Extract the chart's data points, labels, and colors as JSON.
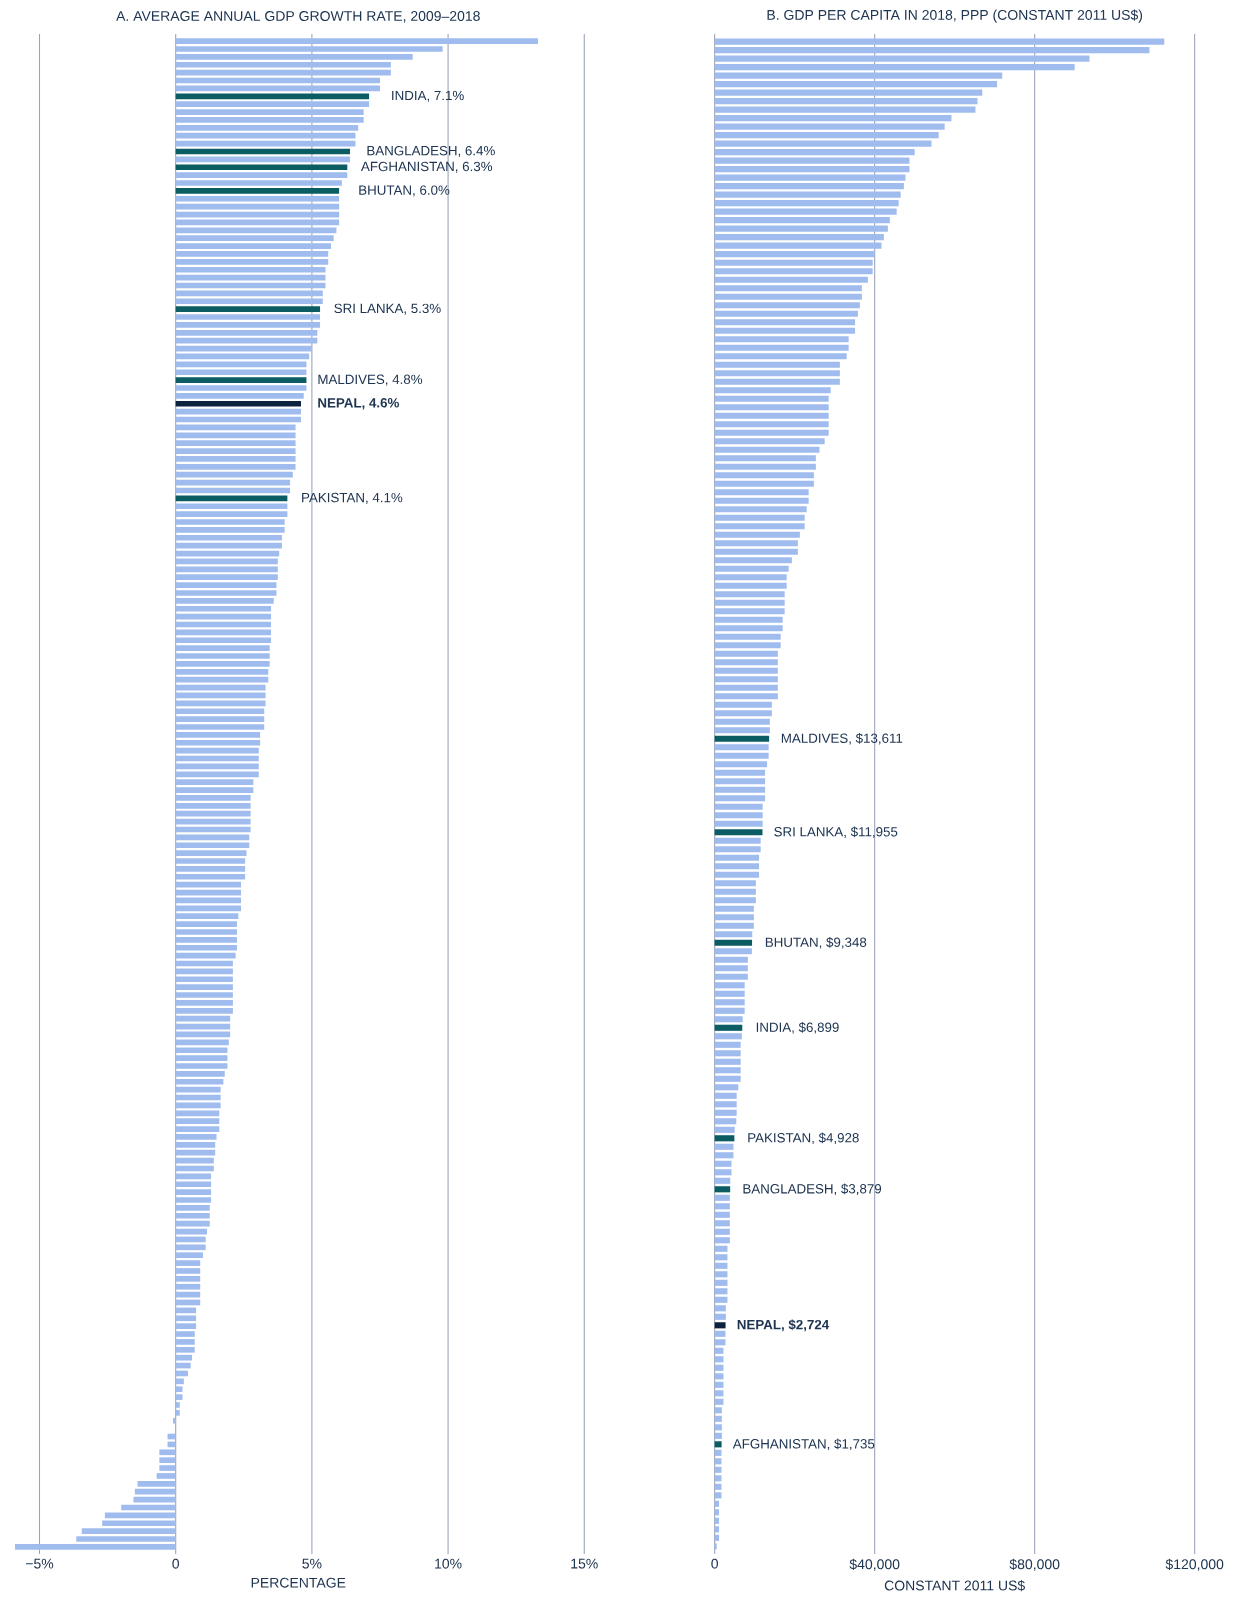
{
  "chart_data": [
    {
      "type": "bar",
      "orientation": "horizontal",
      "title": "A. AVERAGE ANNUAL GDP GROWTH RATE, 2009–2018",
      "xlabel": "PERCENTAGE",
      "grid": "x",
      "xlim": [
        -6,
        15
      ],
      "xticks": [
        {
          "value": -5,
          "label": "−5%"
        },
        0,
        {
          "value": 5,
          "label": "5%"
        },
        {
          "value": 10,
          "label": "10%"
        },
        {
          "value": 15,
          "label": "15%"
        }
      ],
      "categories": [
        null,
        null,
        null,
        null,
        null,
        null,
        null,
        null,
        null,
        null,
        null,
        null,
        null,
        null,
        null,
        null,
        null,
        null,
        null,
        null,
        null,
        null,
        null,
        null,
        null,
        null,
        null,
        null,
        null,
        null,
        null,
        null,
        null,
        null,
        null,
        null,
        null,
        null,
        null,
        null,
        null,
        null,
        null,
        null,
        null,
        null,
        null,
        null,
        null,
        null,
        null,
        null,
        null,
        null,
        null,
        null,
        null,
        null,
        null,
        null,
        null,
        null,
        null,
        null,
        null,
        null,
        null,
        null,
        null,
        null,
        null,
        null,
        null,
        null,
        null,
        null,
        null,
        null,
        null,
        null,
        null,
        null,
        null,
        null,
        null,
        null,
        null,
        null,
        null,
        null,
        null,
        null,
        null,
        null,
        null,
        null,
        null,
        null,
        null,
        null,
        null,
        null,
        null,
        null,
        null,
        null,
        null,
        null,
        null,
        null,
        null,
        null,
        null,
        null,
        null,
        null,
        null,
        null,
        null,
        null,
        null,
        null,
        null,
        null,
        null,
        null,
        null,
        null,
        null,
        null,
        null,
        null,
        null,
        null,
        null,
        null,
        null,
        null,
        null,
        null,
        null,
        null,
        null,
        null,
        null,
        null,
        null,
        null,
        null,
        null,
        null,
        null,
        null,
        null,
        null,
        null,
        null,
        null,
        null,
        null,
        null,
        null,
        null,
        null,
        null,
        null,
        null,
        null,
        null,
        null,
        null,
        null,
        null,
        null,
        null,
        null,
        null,
        null,
        null,
        null,
        null,
        null,
        null,
        null,
        null,
        null,
        null,
        null,
        null,
        null,
        null,
        null
      ],
      "values": [
        13.3,
        9.8,
        8.7,
        7.9,
        7.9,
        7.5,
        7.5,
        7.1,
        7.1,
        6.9,
        6.9,
        6.7,
        6.6,
        6.6,
        6.4,
        6.4,
        6.3,
        6.3,
        6.1,
        6.0,
        6.0,
        6.0,
        6.0,
        6.0,
        5.9,
        5.8,
        5.7,
        5.6,
        5.6,
        5.5,
        5.5,
        5.5,
        5.4,
        5.4,
        5.3,
        5.3,
        5.3,
        5.2,
        5.2,
        5.0,
        4.9,
        4.8,
        4.8,
        4.8,
        4.8,
        4.7,
        4.6,
        4.6,
        4.6,
        4.4,
        4.4,
        4.4,
        4.4,
        4.4,
        4.4,
        4.3,
        4.2,
        4.2,
        4.1,
        4.1,
        4.1,
        4.0,
        4.0,
        3.9,
        3.9,
        3.8,
        3.75,
        3.75,
        3.75,
        3.7,
        3.7,
        3.6,
        3.5,
        3.5,
        3.5,
        3.5,
        3.5,
        3.45,
        3.45,
        3.45,
        3.4,
        3.4,
        3.3,
        3.3,
        3.3,
        3.25,
        3.25,
        3.25,
        3.1,
        3.1,
        3.05,
        3.05,
        3.05,
        3.05,
        2.85,
        2.85,
        2.75,
        2.75,
        2.75,
        2.75,
        2.75,
        2.7,
        2.7,
        2.6,
        2.55,
        2.55,
        2.55,
        2.4,
        2.4,
        2.4,
        2.4,
        2.3,
        2.25,
        2.25,
        2.25,
        2.25,
        2.2,
        2.1,
        2.1,
        2.1,
        2.1,
        2.1,
        2.1,
        2.1,
        2.0,
        2.0,
        2.0,
        1.95,
        1.9,
        1.9,
        1.9,
        1.8,
        1.75,
        1.65,
        1.65,
        1.65,
        1.6,
        1.6,
        1.6,
        1.5,
        1.45,
        1.45,
        1.4,
        1.4,
        1.3,
        1.3,
        1.3,
        1.3,
        1.25,
        1.25,
        1.25,
        1.15,
        1.1,
        1.1,
        1.0,
        0.9,
        0.9,
        0.9,
        0.9,
        0.9,
        0.9,
        0.75,
        0.75,
        0.75,
        0.7,
        0.7,
        0.7,
        0.6,
        0.55,
        0.45,
        0.3,
        0.25,
        0.25,
        0.15,
        0.15,
        -0.1,
        0,
        -0.3,
        -0.3,
        -0.6,
        -0.6,
        -0.6,
        -0.7,
        -1.4,
        -1.5,
        -1.55,
        -2.0,
        -2.6,
        -2.7,
        -3.45,
        -3.65,
        -5.9
      ],
      "colors": [
        "#a0bcee",
        "#a0bcee",
        "#a0bcee",
        "#a0bcee",
        "#a0bcee",
        "#a0bcee",
        "#a0bcee",
        "#0b5c63",
        "#a0bcee",
        "#a0bcee",
        "#a0bcee",
        "#a0bcee",
        "#a0bcee",
        "#a0bcee",
        "#0b5c63",
        "#a0bcee",
        "#0b5c63",
        "#a0bcee",
        "#a0bcee",
        "#0b5c63",
        "#a0bcee",
        "#a0bcee",
        "#a0bcee",
        "#a0bcee",
        "#a0bcee",
        "#a0bcee",
        "#a0bcee",
        "#a0bcee",
        "#a0bcee",
        "#a0bcee",
        "#a0bcee",
        "#a0bcee",
        "#a0bcee",
        "#a0bcee",
        "#0b5c63",
        "#a0bcee",
        "#a0bcee",
        "#a0bcee",
        "#a0bcee",
        "#a0bcee",
        "#a0bcee",
        "#a0bcee",
        "#a0bcee",
        "#0b5c63",
        "#a0bcee",
        "#a0bcee",
        "#0c2340",
        "#a0bcee",
        "#a0bcee",
        "#a0bcee",
        "#a0bcee",
        "#a0bcee",
        "#a0bcee",
        "#a0bcee",
        "#a0bcee",
        "#a0bcee",
        "#a0bcee",
        "#a0bcee",
        "#0b5c63",
        "#a0bcee",
        "#a0bcee",
        "#a0bcee",
        "#a0bcee",
        "#a0bcee",
        "#a0bcee",
        "#a0bcee",
        "#a0bcee",
        "#a0bcee",
        "#a0bcee",
        "#a0bcee",
        "#a0bcee",
        "#a0bcee",
        "#a0bcee",
        "#a0bcee",
        "#a0bcee",
        "#a0bcee",
        "#a0bcee",
        "#a0bcee",
        "#a0bcee",
        "#a0bcee",
        "#a0bcee",
        "#a0bcee",
        "#a0bcee",
        "#a0bcee",
        "#a0bcee",
        "#a0bcee",
        "#a0bcee",
        "#a0bcee",
        "#a0bcee",
        "#a0bcee",
        "#a0bcee",
        "#a0bcee",
        "#a0bcee",
        "#a0bcee",
        "#a0bcee",
        "#a0bcee",
        "#a0bcee",
        "#a0bcee",
        "#a0bcee",
        "#a0bcee",
        "#a0bcee",
        "#a0bcee",
        "#a0bcee",
        "#a0bcee",
        "#a0bcee",
        "#a0bcee",
        "#a0bcee",
        "#a0bcee",
        "#a0bcee",
        "#a0bcee",
        "#a0bcee",
        "#a0bcee",
        "#a0bcee",
        "#a0bcee",
        "#a0bcee",
        "#a0bcee",
        "#a0bcee",
        "#a0bcee",
        "#a0bcee",
        "#a0bcee",
        "#a0bcee",
        "#a0bcee",
        "#a0bcee",
        "#a0bcee",
        "#a0bcee",
        "#a0bcee",
        "#a0bcee",
        "#a0bcee",
        "#a0bcee",
        "#a0bcee",
        "#a0bcee",
        "#a0bcee",
        "#a0bcee",
        "#a0bcee",
        "#a0bcee",
        "#a0bcee",
        "#a0bcee",
        "#a0bcee",
        "#a0bcee",
        "#a0bcee",
        "#a0bcee",
        "#a0bcee",
        "#a0bcee",
        "#a0bcee",
        "#a0bcee",
        "#a0bcee",
        "#a0bcee",
        "#a0bcee",
        "#a0bcee",
        "#a0bcee",
        "#a0bcee",
        "#a0bcee",
        "#a0bcee",
        "#a0bcee",
        "#a0bcee",
        "#a0bcee",
        "#a0bcee",
        "#a0bcee",
        "#a0bcee",
        "#a0bcee",
        "#a0bcee",
        "#a0bcee",
        "#a0bcee",
        "#a0bcee",
        "#a0bcee",
        "#a0bcee",
        "#a0bcee",
        "#a0bcee",
        "#a0bcee",
        "#a0bcee",
        "#a0bcee",
        "#a0bcee",
        "#a0bcee",
        "#a0bcee",
        "#a0bcee",
        "#a0bcee",
        "#a0bcee",
        "#a0bcee",
        "#a0bcee",
        "#a0bcee",
        "#a0bcee",
        "#a0bcee",
        "#a0bcee",
        "#a0bcee",
        "#a0bcee",
        "#a0bcee",
        "#a0bcee",
        "#a0bcee",
        "#a0bcee",
        "#a0bcee",
        "#a0bcee",
        "#a0bcee"
      ],
      "value_labels": [
        null,
        null,
        null,
        null,
        null,
        null,
        null,
        "INDIA, 7.1%",
        null,
        null,
        null,
        null,
        null,
        null,
        "BANGLADESH, 6.4%",
        null,
        "AFGHANISTAN, 6.3%",
        null,
        null,
        "BHUTAN, 6.0%",
        null,
        null,
        null,
        null,
        null,
        null,
        null,
        null,
        null,
        null,
        null,
        null,
        null,
        null,
        "SRI LANKA, 5.3%",
        null,
        null,
        null,
        null,
        null,
        null,
        null,
        null,
        "MALDIVES, 4.8%",
        null,
        null,
        "**NEPAL, 4.6%**",
        null,
        null,
        null,
        null,
        null,
        null,
        null,
        null,
        null,
        null,
        null,
        "PAKISTAN, 4.1%",
        null,
        null,
        null,
        null,
        null,
        null,
        null,
        null,
        null,
        null,
        null,
        null,
        null,
        null,
        null,
        null,
        null,
        null,
        null,
        null,
        null,
        null,
        null,
        null,
        null,
        null,
        null,
        null,
        null,
        null,
        null,
        null,
        null,
        null,
        null,
        null,
        null,
        null,
        null,
        null,
        null,
        null,
        null,
        null,
        null,
        null,
        null,
        null,
        null,
        null,
        null,
        null,
        null,
        null,
        null,
        null,
        null,
        null,
        null,
        null,
        null,
        null,
        null,
        null,
        null,
        null,
        null,
        null,
        null,
        null,
        null,
        null,
        null,
        null,
        null,
        null,
        null,
        null,
        null,
        null,
        null,
        null,
        null,
        null,
        null,
        null,
        null,
        null,
        null,
        null,
        null,
        null,
        null,
        null,
        null,
        null,
        null,
        null,
        null,
        null,
        null,
        null,
        null,
        null,
        null,
        null,
        null,
        null,
        null,
        null,
        null,
        null,
        null,
        null,
        null,
        null,
        null,
        null,
        null,
        null,
        null,
        null,
        null,
        null,
        null,
        null,
        null,
        null,
        null,
        null,
        null,
        null,
        null
      ]
    },
    {
      "type": "bar",
      "orientation": "horizontal",
      "title": "B. GDP PER CAPITA IN 2018, PPP (CONSTANT 2011 US$)",
      "xlabel": "CONSTANT 2011 US$",
      "grid": "x",
      "xlim": [
        0,
        120000
      ],
      "xticks": [
        0,
        {
          "value": 40000,
          "label": "$40,000"
        },
        {
          "value": 80000,
          "label": "$80,000"
        },
        {
          "value": 120000,
          "label": "$120,000"
        }
      ],
      "categories": [
        null,
        null,
        null,
        null,
        null,
        null,
        null,
        null,
        null,
        null,
        null,
        null,
        null,
        null,
        null,
        null,
        null,
        null,
        null,
        null,
        null,
        null,
        null,
        null,
        null,
        null,
        null,
        null,
        null,
        null,
        null,
        null,
        null,
        null,
        null,
        null,
        null,
        null,
        null,
        null,
        null,
        null,
        null,
        null,
        null,
        null,
        null,
        null,
        null,
        null,
        null,
        null,
        null,
        null,
        null,
        null,
        null,
        null,
        null,
        null,
        null,
        null,
        null,
        null,
        null,
        null,
        null,
        null,
        null,
        null,
        null,
        null,
        null,
        null,
        null,
        null,
        null,
        null,
        null,
        null,
        null,
        null,
        null,
        null,
        null,
        null,
        null,
        null,
        null,
        null,
        null,
        null,
        null,
        null,
        null,
        null,
        null,
        null,
        null,
        null,
        null,
        null,
        null,
        null,
        null,
        null,
        null,
        null,
        null,
        null,
        null,
        null,
        null,
        null,
        null,
        null,
        null,
        null,
        null,
        null,
        null,
        null,
        null,
        null,
        null,
        null,
        null,
        null,
        null,
        null,
        null,
        null,
        null,
        null,
        null,
        null,
        null,
        null,
        null,
        null,
        null,
        null,
        null,
        null,
        null,
        null,
        null,
        null,
        null,
        null,
        null,
        null,
        null,
        null,
        null,
        null,
        null,
        null,
        null,
        null,
        null,
        null,
        null,
        null,
        null,
        null,
        null,
        null,
        null,
        null,
        null,
        null,
        null,
        null,
        null,
        null,
        null,
        null
      ],
      "values": [
        112400,
        108700,
        93700,
        90000,
        71900,
        70600,
        66900,
        65700,
        65200,
        59200,
        57500,
        56000,
        54200,
        50000,
        48700,
        48700,
        47700,
        47300,
        46500,
        46000,
        45500,
        43800,
        43300,
        42300,
        41700,
        40000,
        39500,
        39500,
        38300,
        36800,
        36800,
        36300,
        35800,
        35100,
        35100,
        33500,
        33500,
        33000,
        31300,
        31300,
        31300,
        29000,
        28500,
        28500,
        28500,
        28500,
        28500,
        27500,
        26200,
        25300,
        25300,
        24800,
        24800,
        23500,
        23500,
        23000,
        22500,
        22500,
        21300,
        20800,
        20800,
        19300,
        18500,
        18000,
        18000,
        17500,
        17500,
        17500,
        17000,
        17000,
        16500,
        16500,
        15800,
        15800,
        15800,
        15800,
        15800,
        15800,
        14300,
        14300,
        13800,
        13800,
        13611,
        13500,
        13500,
        13100,
        12600,
        12600,
        12600,
        12600,
        12000,
        12000,
        12000,
        11955,
        11500,
        11500,
        11100,
        11100,
        11100,
        10300,
        10300,
        10300,
        9800,
        9800,
        9800,
        9400,
        9348,
        9300,
        8300,
        8300,
        8300,
        7500,
        7500,
        7500,
        7500,
        7000,
        6899,
        6800,
        6500,
        6500,
        6500,
        6500,
        6500,
        5900,
        5500,
        5500,
        5500,
        5400,
        5000,
        4928,
        4700,
        4700,
        4200,
        4200,
        3900,
        3879,
        3800,
        3800,
        3800,
        3800,
        3800,
        3800,
        3200,
        3200,
        3200,
        3200,
        3200,
        3200,
        3200,
        2800,
        2800,
        2724,
        2700,
        2700,
        2200,
        2200,
        2200,
        2200,
        2200,
        2200,
        2200,
        1800,
        1800,
        1800,
        1800,
        1735,
        1700,
        1700,
        1700,
        1700,
        1700,
        1700,
        1100,
        1100,
        1100,
        1100,
        1100,
        500
      ],
      "colors": [
        "#a0bcee",
        "#a0bcee",
        "#a0bcee",
        "#a0bcee",
        "#a0bcee",
        "#a0bcee",
        "#a0bcee",
        "#a0bcee",
        "#a0bcee",
        "#a0bcee",
        "#a0bcee",
        "#a0bcee",
        "#a0bcee",
        "#a0bcee",
        "#a0bcee",
        "#a0bcee",
        "#a0bcee",
        "#a0bcee",
        "#a0bcee",
        "#a0bcee",
        "#a0bcee",
        "#a0bcee",
        "#a0bcee",
        "#a0bcee",
        "#a0bcee",
        "#a0bcee",
        "#a0bcee",
        "#a0bcee",
        "#a0bcee",
        "#a0bcee",
        "#a0bcee",
        "#a0bcee",
        "#a0bcee",
        "#a0bcee",
        "#a0bcee",
        "#a0bcee",
        "#a0bcee",
        "#a0bcee",
        "#a0bcee",
        "#a0bcee",
        "#a0bcee",
        "#a0bcee",
        "#a0bcee",
        "#a0bcee",
        "#a0bcee",
        "#a0bcee",
        "#a0bcee",
        "#a0bcee",
        "#a0bcee",
        "#a0bcee",
        "#a0bcee",
        "#a0bcee",
        "#a0bcee",
        "#a0bcee",
        "#a0bcee",
        "#a0bcee",
        "#a0bcee",
        "#a0bcee",
        "#a0bcee",
        "#a0bcee",
        "#a0bcee",
        "#a0bcee",
        "#a0bcee",
        "#a0bcee",
        "#a0bcee",
        "#a0bcee",
        "#a0bcee",
        "#a0bcee",
        "#a0bcee",
        "#a0bcee",
        "#a0bcee",
        "#a0bcee",
        "#a0bcee",
        "#a0bcee",
        "#a0bcee",
        "#a0bcee",
        "#a0bcee",
        "#a0bcee",
        "#a0bcee",
        "#a0bcee",
        "#a0bcee",
        "#a0bcee",
        "#0b5c63",
        "#a0bcee",
        "#a0bcee",
        "#a0bcee",
        "#a0bcee",
        "#a0bcee",
        "#a0bcee",
        "#a0bcee",
        "#a0bcee",
        "#a0bcee",
        "#a0bcee",
        "#0b5c63",
        "#a0bcee",
        "#a0bcee",
        "#a0bcee",
        "#a0bcee",
        "#a0bcee",
        "#a0bcee",
        "#a0bcee",
        "#a0bcee",
        "#a0bcee",
        "#a0bcee",
        "#a0bcee",
        "#a0bcee",
        "#0b5c63",
        "#a0bcee",
        "#a0bcee",
        "#a0bcee",
        "#a0bcee",
        "#a0bcee",
        "#a0bcee",
        "#a0bcee",
        "#a0bcee",
        "#a0bcee",
        "#0b5c63",
        "#a0bcee",
        "#a0bcee",
        "#a0bcee",
        "#a0bcee",
        "#a0bcee",
        "#a0bcee",
        "#a0bcee",
        "#a0bcee",
        "#a0bcee",
        "#a0bcee",
        "#a0bcee",
        "#a0bcee",
        "#0b5c63",
        "#a0bcee",
        "#a0bcee",
        "#a0bcee",
        "#a0bcee",
        "#a0bcee",
        "#0b5c63",
        "#a0bcee",
        "#a0bcee",
        "#a0bcee",
        "#a0bcee",
        "#a0bcee",
        "#a0bcee",
        "#a0bcee",
        "#a0bcee",
        "#a0bcee",
        "#a0bcee",
        "#a0bcee",
        "#a0bcee",
        "#a0bcee",
        "#a0bcee",
        "#a0bcee",
        "#0c2340",
        "#a0bcee",
        "#a0bcee",
        "#a0bcee",
        "#a0bcee",
        "#a0bcee",
        "#a0bcee",
        "#a0bcee",
        "#a0bcee",
        "#a0bcee",
        "#a0bcee",
        "#a0bcee",
        "#a0bcee",
        "#a0bcee",
        "#0b5c63",
        "#a0bcee",
        "#a0bcee",
        "#a0bcee",
        "#a0bcee",
        "#a0bcee",
        "#a0bcee",
        "#a0bcee",
        "#a0bcee",
        "#a0bcee",
        "#a0bcee",
        "#a0bcee",
        "#a0bcee"
      ],
      "value_labels": [
        null,
        null,
        null,
        null,
        null,
        null,
        null,
        null,
        null,
        null,
        null,
        null,
        null,
        null,
        null,
        null,
        null,
        null,
        null,
        null,
        null,
        null,
        null,
        null,
        null,
        null,
        null,
        null,
        null,
        null,
        null,
        null,
        null,
        null,
        null,
        null,
        null,
        null,
        null,
        null,
        null,
        null,
        null,
        null,
        null,
        null,
        null,
        null,
        null,
        null,
        null,
        null,
        null,
        null,
        null,
        null,
        null,
        null,
        null,
        null,
        null,
        null,
        null,
        null,
        null,
        null,
        null,
        null,
        null,
        null,
        null,
        null,
        null,
        null,
        null,
        null,
        null,
        null,
        null,
        null,
        null,
        null,
        "MALDIVES, $13,611",
        null,
        null,
        null,
        null,
        null,
        null,
        null,
        null,
        null,
        null,
        "SRI LANKA, $11,955",
        null,
        null,
        null,
        null,
        null,
        null,
        null,
        null,
        null,
        null,
        null,
        null,
        "BHUTAN, $9,348",
        null,
        null,
        null,
        null,
        null,
        null,
        null,
        null,
        null,
        "INDIA, $6,899",
        null,
        null,
        null,
        null,
        null,
        null,
        null,
        null,
        null,
        null,
        null,
        null,
        "PAKISTAN, $4,928",
        null,
        null,
        null,
        null,
        null,
        "BANGLADESH, $3,879",
        null,
        null,
        null,
        null,
        null,
        null,
        null,
        null,
        null,
        null,
        null,
        null,
        null,
        null,
        null,
        "**NEPAL, $2,724**",
        null,
        null,
        null,
        null,
        null,
        null,
        null,
        null,
        null,
        null,
        null,
        null,
        null,
        "AFGHANISTAN, $1,735",
        null,
        null,
        null,
        null,
        null,
        null,
        null,
        null,
        null,
        null,
        null,
        null
      ]
    }
  ]
}
